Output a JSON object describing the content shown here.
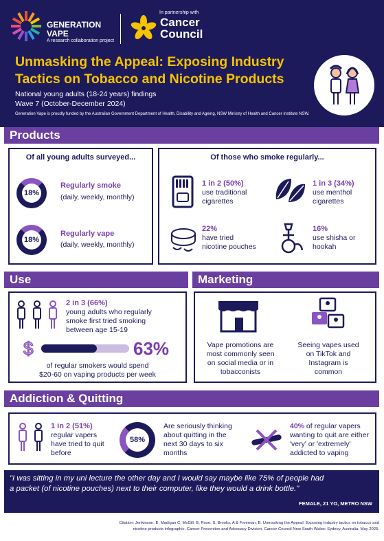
{
  "header": {
    "logo_name_line1": "GENERATION",
    "logo_name_line2": "VAPE",
    "logo_sub": "A research collaboration project",
    "partner_intro": "In partnership with",
    "partner_name_line1": "Cancer",
    "partner_name_line2": "Council",
    "title_line1": "Unmasking the Appeal: Exposing Industry",
    "title_line2": "Tactics on Tobacco and Nicotine Products",
    "subtitle_line1": "National young adults (18-24 years) findings",
    "subtitle_line2": "Wave 7 (October-December 2024)",
    "funding": "Generation Vape is proudly funded by the Australian Government Department of Health, Disability and Ageing, NSW Ministry of Health and Cancer Institute NSW."
  },
  "products": {
    "heading": "Products",
    "all_title": "Of all young adults surveyed...",
    "smoke_pct": "18%",
    "smoke_label": "Regularly smoke",
    "smoke_sub": "(daily, weekly, monthly)",
    "vape_pct": "18%",
    "vape_label": "Regularly vape",
    "vape_sub": "(daily, weekly, monthly)",
    "smokers_title": "Of those who smoke regularly...",
    "trad_stat": "1 in 2 (50%)",
    "trad_line1": "use traditional",
    "trad_line2": "cigarettes",
    "menthol_stat": "1 in 3 (34%)",
    "menthol_line1": "use menthol",
    "menthol_line2": "cigarettes",
    "pouch_stat": "22%",
    "pouch_line1": "have tried",
    "pouch_line2": "nicotine pouches",
    "shisha_stat": "16%",
    "shisha_line1": "use shisha or",
    "shisha_line2": "hookah"
  },
  "use": {
    "heading": "Use",
    "first_stat": "2 in 3 (66%)",
    "first_line1": "young adults who regularly",
    "first_line2": "smoke first tried smoking",
    "first_line3": "between age 15-19",
    "spend_pct": "63%",
    "spend_fraction": 0.63,
    "spend_line1": "of regular smokers would spend",
    "spend_line2": "$20-60 on vaping products per week"
  },
  "marketing": {
    "heading": "Marketing",
    "promo_line1": "Vape promotions are",
    "promo_line2": "most commonly seen",
    "promo_line3": "on social media or in",
    "promo_line4": "tobacconists",
    "social_line1": "Seeing vapes used",
    "social_line2": "on TikTok and",
    "social_line3": "Instagram is",
    "social_line4": "common"
  },
  "addiction": {
    "heading": "Addiction & Quitting",
    "tried_stat": "1 in 2 (51%)",
    "tried_line1": "regular vapers",
    "tried_line2": "have tried to quit",
    "tried_line3": "before",
    "quit_pct": "58%",
    "quit_line1": "Are seriously thinking",
    "quit_line2": "about quitting in the",
    "quit_line3": "next 30 days to six",
    "quit_line4": "months",
    "addicted_stat": "40%",
    "addicted_line1": " of regular vapers",
    "addicted_line2": "wanting to quit are either",
    "addicted_line3": "'very' or 'extremely'",
    "addicted_line4": "addicted to vaping"
  },
  "quote": {
    "text_line1": "\"I was sitting in my uni lecture the other day and I would say maybe like 75% of people had",
    "text_line2": "a packet (of nicotine pouches) next to their computer, like they would a drink bottle.\"",
    "attribution": "FEMALE, 21 YO, METRO NSW"
  },
  "citation": {
    "line1": "Citation: Jenkinson, E, Madigan C, McGill, B, Rose, S, Brooks, A & Freeman, B. Unmasking the Appeal: Exposing Industry tactics on tobacco and",
    "line2": "nicotine products infographic. Cancer Prevention and Advocacy Division, Cancer Council New South Wales: Sydney, Australia, May 2025."
  },
  "colors": {
    "navy": "#1d1a5c",
    "purple": "#6b3fa0",
    "accent": "#8a55c0",
    "yellow": "#f5c400"
  },
  "icons": [
    "generation-vape-logo",
    "cancer-council-logo",
    "people-icon",
    "cigarette-pack-icon",
    "leaf-icon",
    "pouch-tin-icon",
    "hookah-icon",
    "person-icon",
    "dollar-icon",
    "shop-icon",
    "social-media-icon",
    "no-vape-icon"
  ]
}
